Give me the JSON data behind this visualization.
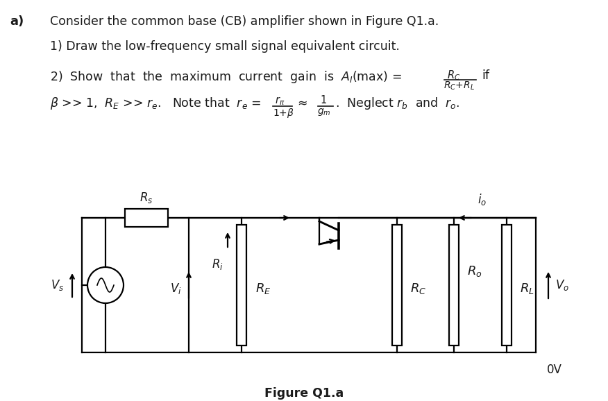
{
  "bg_color": "#ffffff",
  "text_color": "#1a1a1a",
  "title_a": "a)",
  "line1": "Consider the common base (CB) amplifier shown in Figure Q1.a.",
  "line2": "1) Draw the low-frequency small signal equivalent circuit.",
  "figure_caption": "Figure Q1.a",
  "fig_width": 8.76,
  "fig_height": 5.78,
  "dpi": 100
}
